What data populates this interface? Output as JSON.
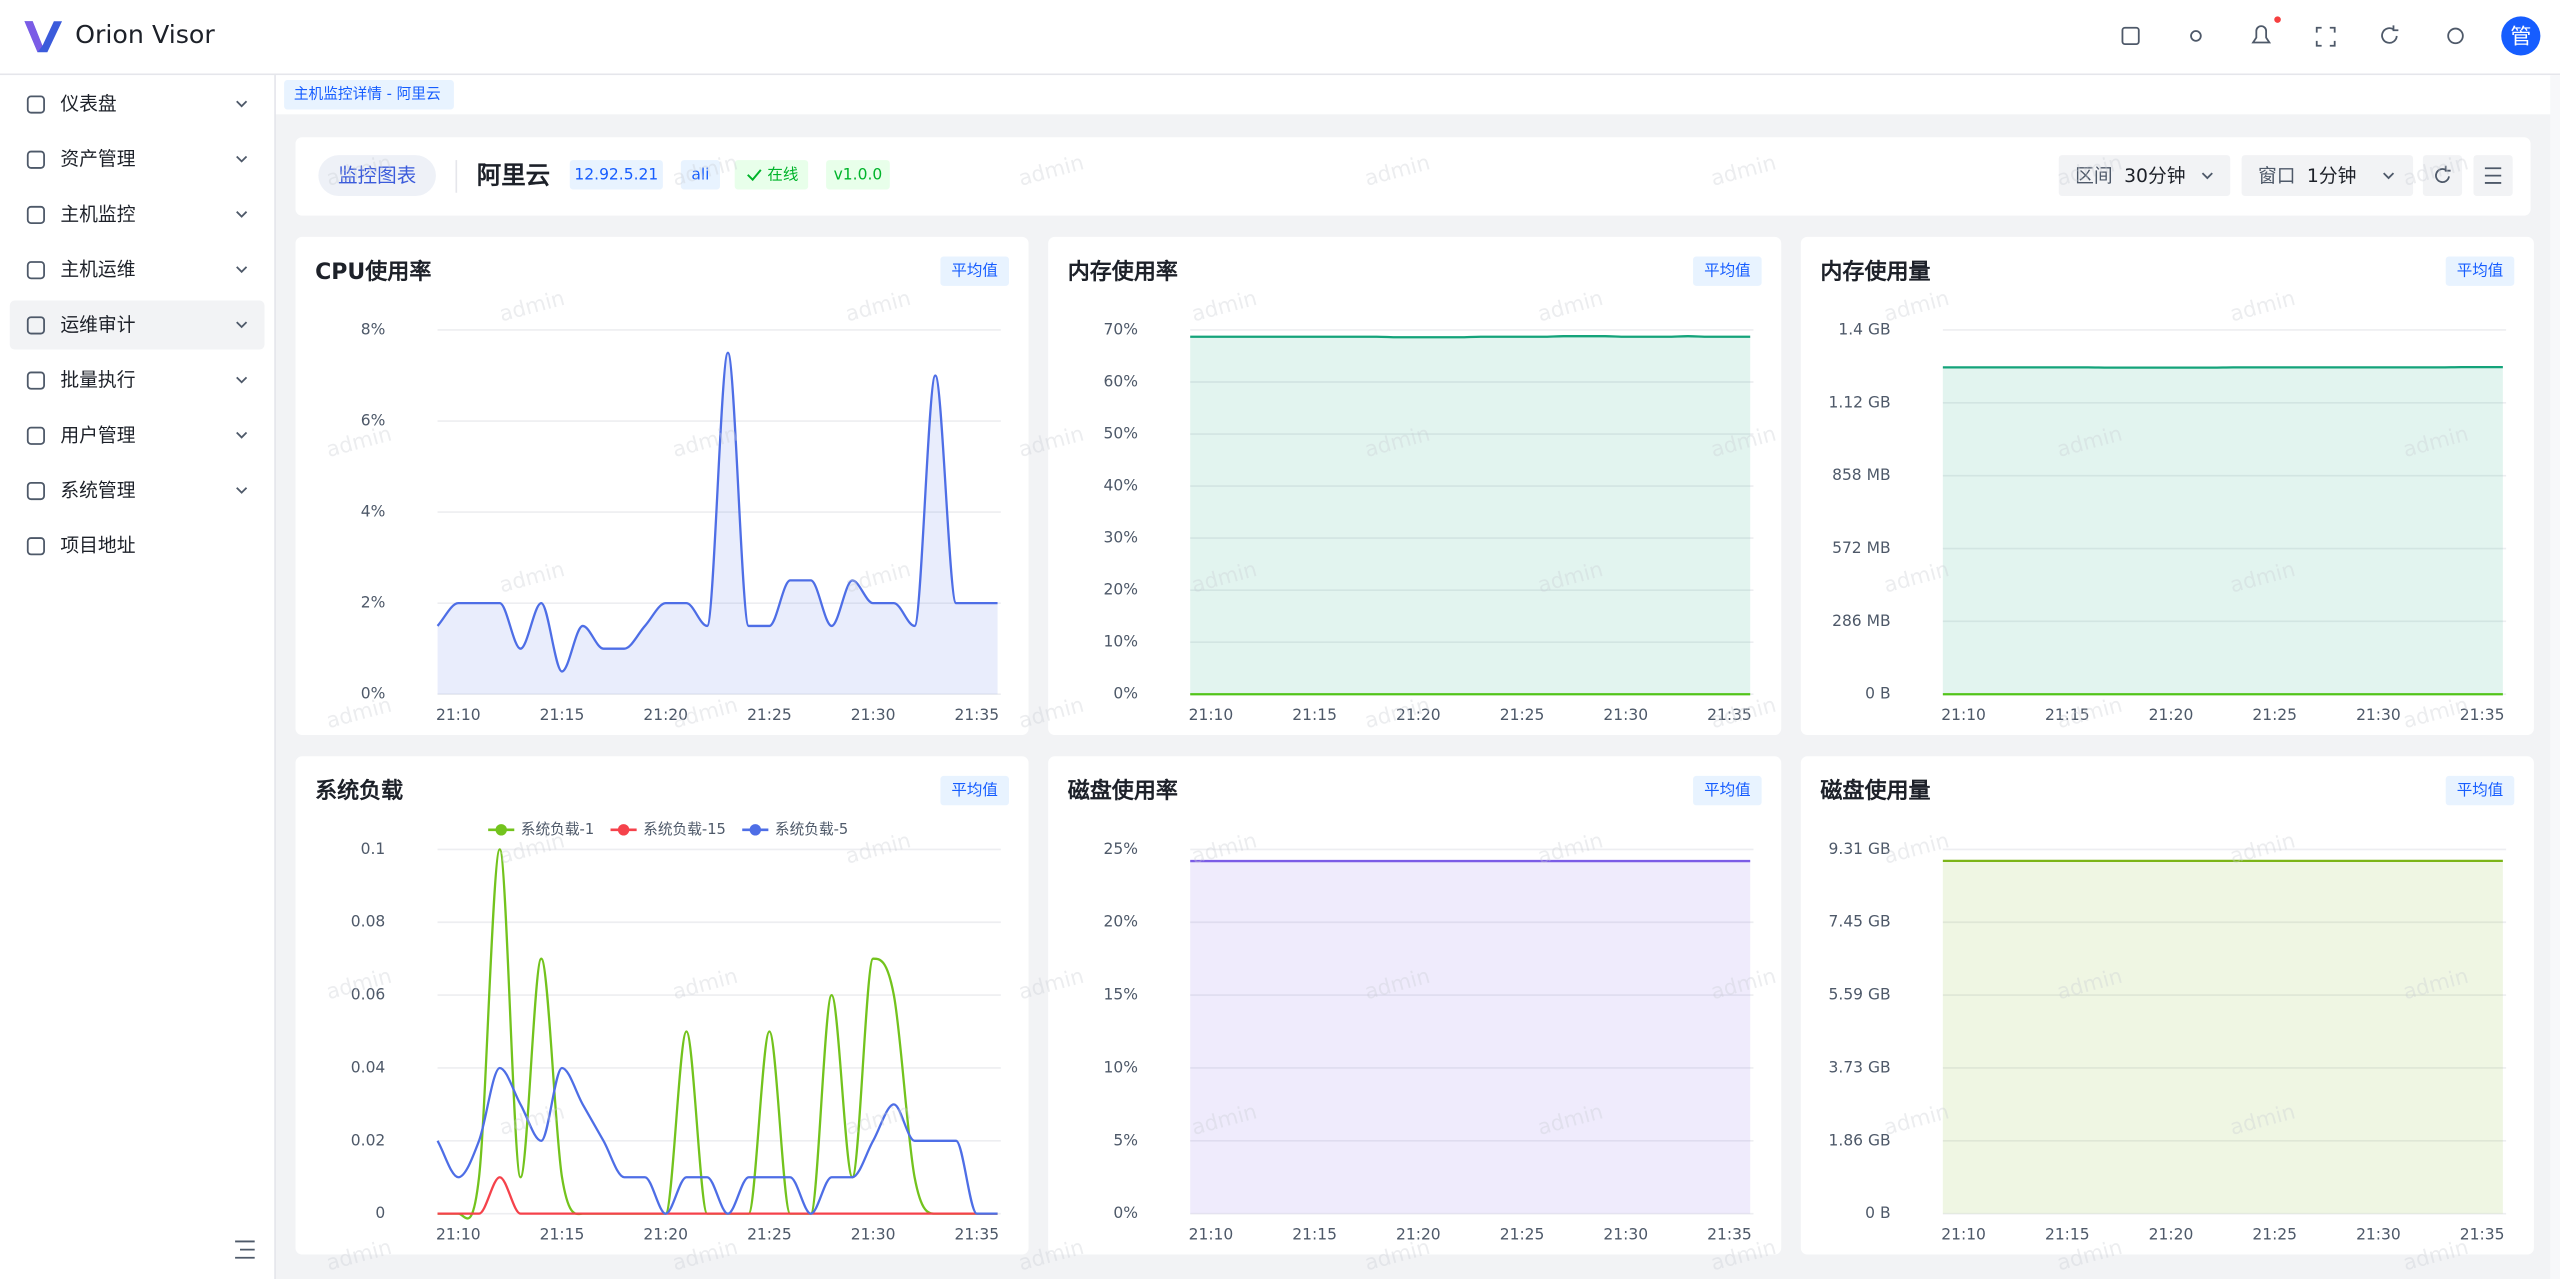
{
  "header": {
    "logo": "Orion Visor",
    "avatar": "管"
  },
  "menu": [
    "仪表盘",
    "资产管理",
    "主机监控",
    "主机运维",
    "运维审计",
    "批量执行",
    "用户管理",
    "系统管理",
    "项目地址"
  ],
  "tab": "主机监控详情 - 阿里云",
  "toolbar": {
    "tab": "监控图表",
    "host": "阿里云",
    "address": "12.92.5.21",
    "code": "ali",
    "status": "在线",
    "version": "v1.0.0",
    "range_label": "区间",
    "range": "30分钟",
    "window_label": "窗口",
    "window": "1分钟"
  },
  "watermark": "admin",
  "chart_data": [
    {
      "type": "line",
      "title": "CPU使用率",
      "tag": "平均值",
      "area": true,
      "grid": true,
      "categories": [
        null,
        "21:10",
        null,
        null,
        null,
        null,
        "21:15",
        null,
        null,
        null,
        null,
        "21:20",
        null,
        null,
        null,
        null,
        "21:25",
        null,
        null,
        null,
        null,
        "21:30",
        null,
        null,
        null,
        null,
        "21:35",
        null
      ],
      "series": [
        {
          "color": "#4e6ee6",
          "values": [
            1.5,
            2,
            2,
            2,
            1,
            2,
            0.5,
            1.5,
            1,
            1,
            1.5,
            2,
            2,
            1.5,
            7.5,
            1.5,
            1.5,
            2.5,
            2.5,
            1.5,
            2.5,
            2,
            2,
            1.5,
            7,
            2,
            2,
            2
          ]
        }
      ],
      "ylim": [
        0,
        8
      ],
      "yticks": [
        {
          "value": 0,
          "label": "0%"
        },
        {
          "value": 2,
          "label": "2%"
        },
        {
          "value": 4,
          "label": "4%"
        },
        {
          "value": 6,
          "label": "6%"
        },
        {
          "value": 8,
          "label": "8%"
        }
      ]
    },
    {
      "type": "line",
      "title": "内存使用率",
      "tag": "平均值",
      "area": true,
      "grid": true,
      "categories": [
        null,
        "21:10",
        null,
        null,
        null,
        null,
        "21:15",
        null,
        null,
        null,
        null,
        "21:20",
        null,
        null,
        null,
        null,
        "21:25",
        null,
        null,
        null,
        null,
        "21:30",
        null,
        null,
        null,
        null,
        "21:35",
        null
      ],
      "series": [
        {
          "color": "#14a37a",
          "values": [
            68.7,
            68.7,
            68.7,
            68.7,
            68.7,
            68.7,
            68.7,
            68.7,
            68.7,
            68.7,
            68.6,
            68.6,
            68.6,
            68.6,
            68.7,
            68.7,
            68.7,
            68.7,
            68.8,
            68.8,
            68.8,
            68.7,
            68.7,
            68.7,
            68.8,
            68.7,
            68.7,
            68.7
          ]
        },
        {
          "color": "#52c41a",
          "values": [
            0,
            0,
            0,
            0,
            0,
            0,
            0,
            0,
            0,
            0,
            0,
            0,
            0,
            0,
            0,
            0,
            0,
            0,
            0,
            0,
            0,
            0,
            0,
            0,
            0,
            0,
            0,
            0
          ]
        }
      ],
      "ylim": [
        0,
        70
      ],
      "yticks": [
        {
          "value": 0,
          "label": "0%"
        },
        {
          "value": 10,
          "label": "10%"
        },
        {
          "value": 20,
          "label": "20%"
        },
        {
          "value": 30,
          "label": "30%"
        },
        {
          "value": 40,
          "label": "40%"
        },
        {
          "value": 50,
          "label": "50%"
        },
        {
          "value": 60,
          "label": "60%"
        },
        {
          "value": 70,
          "label": "70%"
        }
      ]
    },
    {
      "type": "line",
      "title": "内存使用量",
      "tag": "平均值",
      "area": true,
      "grid": true,
      "categories": [
        null,
        "21:10",
        null,
        null,
        null,
        null,
        "21:15",
        null,
        null,
        null,
        null,
        "21:20",
        null,
        null,
        null,
        null,
        "21:25",
        null,
        null,
        null,
        null,
        "21:30",
        null,
        null,
        null,
        null,
        "21:35",
        null
      ],
      "series": [
        {
          "color": "#14a37a",
          "values": [
            1283,
            1283,
            1283,
            1283,
            1283,
            1283,
            1283,
            1283,
            1282,
            1282,
            1282,
            1282,
            1282,
            1282,
            1283,
            1283,
            1283,
            1283,
            1283,
            1283,
            1283,
            1283,
            1283,
            1283,
            1283,
            1284,
            1284,
            1284
          ]
        },
        {
          "color": "#52c41a",
          "values": [
            0,
            0,
            0,
            0,
            0,
            0,
            0,
            0,
            0,
            0,
            0,
            0,
            0,
            0,
            0,
            0,
            0,
            0,
            0,
            0,
            0,
            0,
            0,
            0,
            0,
            0,
            0,
            0
          ]
        }
      ],
      "ylim": [
        0,
        1430
      ],
      "yticks": [
        {
          "value": 0,
          "label": "0 B"
        },
        {
          "value": 286,
          "label": "286 MB"
        },
        {
          "value": 572,
          "label": "572 MB"
        },
        {
          "value": 858,
          "label": "858 MB"
        },
        {
          "value": 1144,
          "label": "1.12 GB"
        },
        {
          "value": 1430,
          "label": "1.4 GB"
        }
      ]
    },
    {
      "type": "line",
      "title": "系统负载",
      "tag": "平均值",
      "area": false,
      "grid": true,
      "legend": "top",
      "categories": [
        null,
        "21:10",
        null,
        null,
        null,
        null,
        "21:15",
        null,
        null,
        null,
        null,
        "21:20",
        null,
        null,
        null,
        null,
        "21:25",
        null,
        null,
        null,
        null,
        "21:30",
        null,
        null,
        null,
        null,
        "21:35",
        null
      ],
      "series": [
        {
          "name": "系统负载-1",
          "color": "#73c31d",
          "values": [
            0,
            0,
            0.01,
            0.1,
            0.01,
            0.07,
            0.01,
            0,
            0,
            0,
            0,
            0,
            0.05,
            0,
            0,
            0,
            0.05,
            0,
            0,
            0.06,
            0.01,
            0.07,
            0.06,
            0.01,
            0,
            0,
            0,
            0
          ]
        },
        {
          "name": "系统负载-15",
          "color": "#f5424b",
          "values": [
            0,
            0,
            0,
            0.01,
            0,
            0,
            0,
            0,
            0,
            0,
            0,
            0,
            0,
            0,
            0,
            0,
            0,
            0,
            0,
            0,
            0,
            0,
            0,
            0,
            0,
            0,
            0,
            0
          ]
        },
        {
          "name": "系统负载-5",
          "color": "#4e6ee6",
          "values": [
            0.02,
            0.01,
            0.02,
            0.04,
            0.03,
            0.02,
            0.04,
            0.03,
            0.02,
            0.01,
            0.01,
            0,
            0.01,
            0.01,
            0,
            0.01,
            0.01,
            0.01,
            0,
            0.01,
            0.01,
            0.02,
            0.03,
            0.02,
            0.02,
            0.02,
            0,
            0
          ]
        }
      ],
      "ylim": [
        0,
        0.1
      ],
      "yticks": [
        0,
        0.02,
        0.04,
        0.06,
        0.08,
        0.1
      ]
    },
    {
      "type": "line",
      "title": "磁盘使用率",
      "tag": "平均值",
      "area": true,
      "grid": true,
      "categories": [
        null,
        "21:10",
        null,
        null,
        null,
        null,
        "21:15",
        null,
        null,
        null,
        null,
        "21:20",
        null,
        null,
        null,
        null,
        "21:25",
        null,
        null,
        null,
        null,
        "21:30",
        null,
        null,
        null,
        null,
        "21:35",
        null
      ],
      "series": [
        {
          "color": "#7b5ce6",
          "values": [
            24.2,
            24.2,
            24.2,
            24.2,
            24.2,
            24.2,
            24.2,
            24.2,
            24.2,
            24.2,
            24.2,
            24.2,
            24.2,
            24.2,
            24.2,
            24.2,
            24.2,
            24.2,
            24.2,
            24.2,
            24.2,
            24.2,
            24.2,
            24.2,
            24.2,
            24.2,
            24.2,
            24.2
          ]
        }
      ],
      "ylim": [
        0,
        25
      ],
      "yticks": [
        {
          "value": 0,
          "label": "0%"
        },
        {
          "value": 5,
          "label": "5%"
        },
        {
          "value": 10,
          "label": "10%"
        },
        {
          "value": 15,
          "label": "15%"
        },
        {
          "value": 20,
          "label": "20%"
        },
        {
          "value": 25,
          "label": "25%"
        }
      ]
    },
    {
      "type": "line",
      "title": "磁盘使用量",
      "tag": "平均值",
      "area": true,
      "grid": true,
      "categories": [
        null,
        "21:10",
        null,
        null,
        null,
        null,
        "21:15",
        null,
        null,
        null,
        null,
        "21:20",
        null,
        null,
        null,
        null,
        "21:25",
        null,
        null,
        null,
        null,
        "21:30",
        null,
        null,
        null,
        null,
        "21:35",
        null
      ],
      "series": [
        {
          "color": "#7cb518",
          "values": [
            9.02,
            9.02,
            9.02,
            9.02,
            9.02,
            9.02,
            9.02,
            9.02,
            9.02,
            9.02,
            9.02,
            9.02,
            9.02,
            9.02,
            9.02,
            9.02,
            9.02,
            9.02,
            9.02,
            9.02,
            9.02,
            9.02,
            9.02,
            9.02,
            9.02,
            9.02,
            9.02,
            9.02
          ]
        }
      ],
      "ylim": [
        0,
        9.3125
      ],
      "yticks": [
        {
          "value": 0,
          "label": "0 B"
        },
        {
          "value": 1.8625,
          "label": "1.86 GB"
        },
        {
          "value": 3.725,
          "label": "3.73 GB"
        },
        {
          "value": 5.5875,
          "label": "5.59 GB"
        },
        {
          "value": 7.45,
          "label": "7.45 GB"
        },
        {
          "value": 9.3125,
          "label": "9.31 GB"
        }
      ]
    }
  ]
}
